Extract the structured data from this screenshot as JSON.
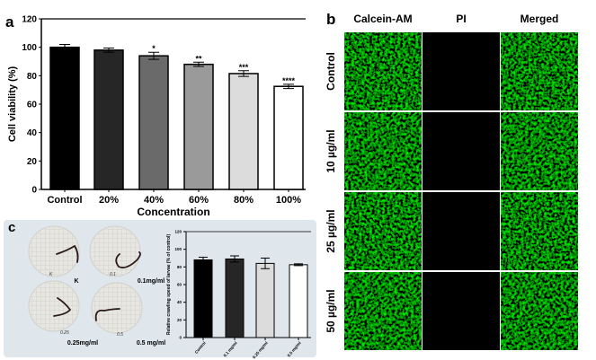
{
  "panels": {
    "a_label": "a",
    "b_label": "b",
    "c_label": "c"
  },
  "chart_data": [
    {
      "type": "bar",
      "panel": "a",
      "categories": [
        "Control",
        "20%",
        "40%",
        "60%",
        "80%",
        "100%"
      ],
      "values": [
        100,
        98,
        94,
        88,
        81.5,
        72.5
      ],
      "errors": [
        2,
        1.5,
        2.5,
        1.5,
        2,
        1.5
      ],
      "significance": [
        "",
        "",
        "*",
        "**",
        "***",
        "****"
      ],
      "bar_colors": [
        "#000000",
        "#262626",
        "#6a6a6a",
        "#9a9a9a",
        "#dcdcdc",
        "#ffffff"
      ],
      "xlabel": "Concentration",
      "ylabel": "Cell viability (%)",
      "ylim": [
        0,
        120
      ],
      "yticks": [
        0,
        20,
        40,
        60,
        80,
        100,
        120
      ],
      "grid": false
    },
    {
      "type": "bar",
      "panel": "c",
      "categories": [
        "Control",
        "0.1 mg/ml",
        "0.25 mg/ml",
        "0.5 mg/ml"
      ],
      "values": [
        88,
        89,
        84,
        82.5
      ],
      "errors": [
        3,
        3.5,
        6,
        1
      ],
      "bar_colors": [
        "#000000",
        "#262626",
        "#dcdcdc",
        "#ffffff"
      ],
      "xlabel": "",
      "ylabel": "Relative crawling speed of larvae (% of control)",
      "ylim": [
        0,
        120
      ],
      "yticks": [
        0,
        20,
        40,
        60,
        80,
        100,
        120
      ],
      "grid": false
    }
  ],
  "microscopy": {
    "columns": [
      "Calcein-AM",
      "PI",
      "Merged"
    ],
    "rows": [
      "Control",
      "10 µg/ml",
      "25 µg/ml",
      "50 µg/ml"
    ],
    "stain_color": "#22c51e"
  },
  "dishes": [
    {
      "label": "K",
      "mark": "K"
    },
    {
      "label": "0.1mg/ml",
      "mark": "0.1"
    },
    {
      "label": "0.25mg/ml",
      "mark": "0.25"
    },
    {
      "label": "0.5 mg/ml",
      "mark": "0.5"
    }
  ]
}
